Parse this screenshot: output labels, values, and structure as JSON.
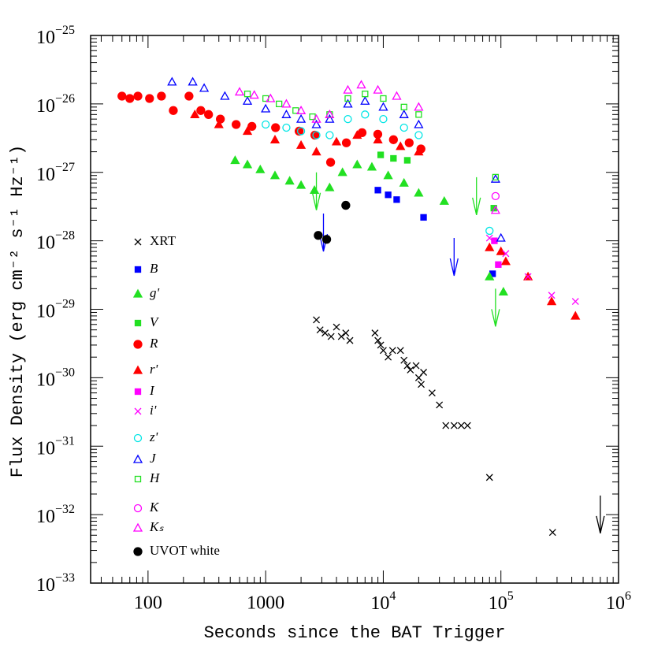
{
  "chart_data": {
    "type": "scatter",
    "xlabel": "Seconds since the BAT Trigger",
    "ylabel": "Flux Density (erg cm⁻² s⁻¹ Hz⁻¹)",
    "xscale": "log",
    "yscale": "log",
    "xlim": [
      32.5,
      1000000
    ],
    "ylim": [
      1e-33,
      1e-25
    ],
    "xticks": [
      100,
      1000,
      {
        "value": 10000,
        "label": "10",
        "exp": "4"
      },
      {
        "value": 100000,
        "label": "10",
        "exp": "5"
      },
      {
        "value": 1000000,
        "label": "10",
        "exp": "6"
      }
    ],
    "yticks": [
      {
        "value": 1e-33,
        "label": "10",
        "exp": "−33"
      },
      {
        "value": 1e-32,
        "label": "10",
        "exp": "−32"
      },
      {
        "value": 1e-31,
        "label": "10",
        "exp": "−31"
      },
      {
        "value": 1e-30,
        "label": "10",
        "exp": "−30"
      },
      {
        "value": 1e-29,
        "label": "10",
        "exp": "−29"
      },
      {
        "value": 1e-28,
        "label": "10",
        "exp": "−28"
      },
      {
        "value": 1e-27,
        "label": "10",
        "exp": "−27"
      },
      {
        "value": 1e-26,
        "label": "10",
        "exp": "−26"
      },
      {
        "value": 1e-25,
        "label": "10",
        "exp": "−25"
      }
    ],
    "series": [
      {
        "name": "XRT",
        "color": "#000000",
        "marker": "x",
        "filled": true,
        "x": [
          2700,
          2900,
          3200,
          3600,
          4000,
          4400,
          4800,
          5200,
          8500,
          9000,
          9500,
          10000,
          11000,
          12000,
          14000,
          15000,
          16000,
          17000,
          19000,
          20000,
          21000,
          22000,
          26000,
          30000,
          34000,
          40000,
          46000,
          52000,
          80000,
          275000
        ],
        "values": [
          7e-30,
          5e-30,
          4.5e-30,
          4e-30,
          5.5e-30,
          4e-30,
          4.5e-30,
          3.5e-30,
          4.5e-30,
          3.5e-30,
          3e-30,
          2.5e-30,
          2e-30,
          2.5e-30,
          2.5e-30,
          1.8e-30,
          1.5e-30,
          1.3e-30,
          1.5e-30,
          1e-30,
          8e-31,
          1.2e-30,
          6e-31,
          4e-31,
          2e-31,
          2e-31,
          2e-31,
          2e-31,
          3.5e-32,
          5.5e-33
        ],
        "upper_limit_x": [
          700000
        ],
        "upper_limit_values": [
          1.9e-32
        ]
      },
      {
        "name": "B",
        "color": "#0000ff",
        "marker": "square",
        "filled": true,
        "x": [
          9000,
          11000,
          13000,
          22000,
          85000
        ],
        "values": [
          5.5e-28,
          4.7e-28,
          4e-28,
          2.2e-28,
          3.3e-29
        ],
        "upper_limit_x": [
          3100,
          40000
        ],
        "upper_limit_values": [
          2.5e-28,
          1.1e-28
        ]
      },
      {
        "name": "g'",
        "color": "#22e022",
        "marker": "triangle",
        "filled": true,
        "x": [
          550,
          700,
          900,
          1200,
          1600,
          2000,
          2600,
          3500,
          4500,
          6000,
          8000,
          11000,
          15000,
          20000,
          33000,
          80000,
          105000
        ],
        "values": [
          1.5e-27,
          1.3e-27,
          1.1e-27,
          9e-28,
          7.5e-28,
          6.5e-28,
          5.5e-28,
          6e-28,
          1e-27,
          1.3e-27,
          1.2e-27,
          9e-28,
          7e-28,
          5e-28,
          3.8e-28,
          3e-29,
          1.8e-29
        ],
        "upper_limit_x": [
          2700,
          62000,
          90000
        ],
        "upper_limit_values": [
          1e-27,
          8.5e-28,
          2e-29
        ]
      },
      {
        "name": "V",
        "color": "#22e022",
        "marker": "square",
        "filled": true,
        "x": [
          9500,
          12200,
          16000,
          87000
        ],
        "values": [
          1.8e-27,
          1.6e-27,
          1.5e-27,
          3e-28
        ]
      },
      {
        "name": "R",
        "color": "#ff0000",
        "marker": "circle",
        "filled": true,
        "x": [
          60,
          70,
          82,
          103,
          130,
          164,
          223,
          281,
          327,
          412,
          561,
          764,
          1214,
          1925,
          2620,
          3566,
          4853,
          6600,
          8980,
          12200,
          16600,
          20900
        ],
        "values": [
          1.3e-26,
          1.2e-26,
          1.3e-26,
          1.2e-26,
          1.3e-26,
          8e-27,
          1.3e-26,
          8e-27,
          7e-27,
          6e-27,
          5e-27,
          4.7e-27,
          4.5e-27,
          4e-27,
          3.5e-27,
          1.4e-27,
          2.7e-27,
          3.8e-27,
          3.6e-27,
          3e-27,
          2.7e-27,
          2.2e-27
        ]
      },
      {
        "name": "r'",
        "color": "#ff0000",
        "marker": "triangle",
        "filled": true,
        "x": [
          250,
          400,
          700,
          1200,
          2000,
          2700,
          4000,
          6000,
          9000,
          14000,
          20000,
          80000,
          100000,
          110000,
          170000,
          270000,
          430000
        ],
        "values": [
          7e-27,
          5e-27,
          4e-27,
          3e-27,
          2.5e-27,
          2e-27,
          2.8e-27,
          3.5e-27,
          3e-27,
          2.4e-27,
          2e-27,
          8e-29,
          7e-29,
          5e-29,
          3e-29,
          1.3e-29,
          8e-30
        ]
      },
      {
        "name": "I",
        "color": "#ff00ff",
        "marker": "square",
        "filled": true,
        "x": [
          88000,
          95000
        ],
        "values": [
          1e-28,
          4.5e-29
        ]
      },
      {
        "name": "i'",
        "color": "#ff00ff",
        "marker": "x",
        "filled": true,
        "x": [
          80000,
          110000,
          170000,
          270000,
          430000
        ],
        "values": [
          1.1e-28,
          6.5e-29,
          3e-29,
          1.6e-29,
          1.3e-29
        ]
      },
      {
        "name": "z'",
        "color": "#00e5e5",
        "marker": "circle",
        "filled": false,
        "x": [
          1000,
          1500,
          2000,
          2700,
          3500,
          5000,
          7000,
          10000,
          15000,
          20000,
          80000
        ],
        "values": [
          5e-27,
          4.5e-27,
          4e-27,
          3.5e-27,
          3.5e-27,
          6e-27,
          7e-27,
          6e-27,
          4.5e-27,
          3.5e-27,
          1.4e-28
        ]
      },
      {
        "name": "J",
        "color": "#0000ff",
        "marker": "triangle",
        "filled": false,
        "x": [
          160,
          240,
          300,
          450,
          700,
          1000,
          1500,
          2000,
          2700,
          3500,
          5000,
          7000,
          10000,
          15000,
          20000,
          90000,
          100000
        ],
        "values": [
          2.1e-26,
          2.1e-26,
          1.7e-26,
          1.3e-26,
          1.1e-26,
          8.5e-27,
          7e-27,
          6e-27,
          5e-27,
          6e-27,
          1e-26,
          1.1e-26,
          9e-27,
          7e-27,
          5e-27,
          8e-28,
          1.1e-28
        ]
      },
      {
        "name": "H",
        "color": "#22e022",
        "marker": "square",
        "filled": false,
        "x": [
          700,
          1000,
          1300,
          1800,
          2500,
          3500,
          5000,
          7000,
          10000,
          15000,
          20000,
          90000
        ],
        "values": [
          1.4e-26,
          1.2e-26,
          1e-26,
          8e-27,
          6.5e-27,
          7e-27,
          1.2e-26,
          1.4e-26,
          1.2e-26,
          9e-27,
          7e-27,
          8.5e-28
        ]
      },
      {
        "name": "K",
        "color": "#ff00ff",
        "marker": "circle",
        "filled": false,
        "x": [
          90000
        ],
        "values": [
          4.5e-28
        ]
      },
      {
        "name": "Kₛ",
        "color": "#ff00ff",
        "marker": "triangle",
        "filled": false,
        "x": [
          600,
          800,
          1100,
          1500,
          2000,
          2700,
          3500,
          5000,
          6500,
          9000,
          13000,
          20000,
          90000
        ],
        "values": [
          1.5e-26,
          1.35e-26,
          1.2e-26,
          1e-26,
          8e-27,
          6e-27,
          7e-27,
          1.6e-26,
          1.9e-26,
          1.6e-26,
          1.3e-26,
          9e-27,
          2.8e-28
        ]
      },
      {
        "name": "UVOT white",
        "color": "#000000",
        "marker": "circle",
        "filled": true,
        "x": [
          2800,
          3300,
          4800
        ],
        "values": [
          1.2e-28,
          1.05e-28,
          3.3e-28
        ]
      }
    ]
  }
}
